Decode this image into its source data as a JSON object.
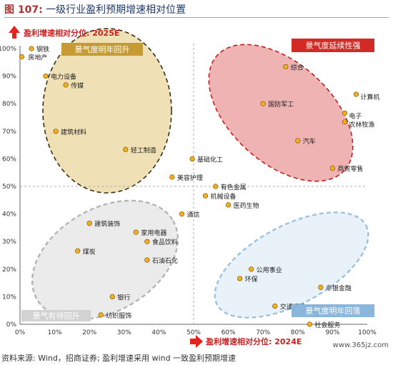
{
  "figure": {
    "title_num": "图 107:",
    "title_text": "一级行业盈利预期增速相对位置",
    "source": "资料来源: Wind，招商证券; 盈利增速采用 wind 一致盈利预期增速",
    "watermark": "www.365jz.com"
  },
  "colors": {
    "axis_arrow": "#e8221c",
    "axis_label": "#cc1f1f",
    "point": "#f3b01c",
    "point_stroke": "#6b4f00",
    "q2": {
      "fill": "#efe1b5",
      "stroke": "#3a2f14",
      "tag_bg": "#c79b33"
    },
    "q1": {
      "fill": "#f0b3b3",
      "stroke": "#c01f1f",
      "tag_bg": "#d42a26"
    },
    "q3": {
      "fill": "#ebebeb",
      "stroke": "#b5b5b5",
      "tag_bg": "#d2d2d2"
    },
    "q4": {
      "fill": "#eaf2f9",
      "stroke": "#9cc2df",
      "tag_bg": "#8ab6db"
    }
  },
  "chart_data": {
    "type": "scatter",
    "xlabel": "盈利增速相对分位: 2024E",
    "ylabel": "盈利增速相对分位: 2025E",
    "xlim": [
      0,
      100
    ],
    "ylim": [
      0,
      100
    ],
    "xticks": [
      "0%",
      "10%",
      "20%",
      "30%",
      "40%",
      "50%",
      "60%",
      "70%",
      "80%",
      "90%",
      "100%"
    ],
    "yticks": [
      "0%",
      "10%",
      "20%",
      "30%",
      "40%",
      "50%",
      "60%",
      "70%",
      "80%",
      "90%",
      "100%"
    ],
    "divider": {
      "x": 50,
      "y": 50
    },
    "regions": [
      {
        "id": "q2",
        "label": "景气度明年回升"
      },
      {
        "id": "q1",
        "label": "景气度延续性强"
      },
      {
        "id": "q3",
        "label": "景气有待回升"
      },
      {
        "id": "q4",
        "label": "景气度明年回落"
      }
    ],
    "points": [
      {
        "name": "钢铁",
        "x": 3.3,
        "y": 100
      },
      {
        "name": "房地产",
        "x": 0.5,
        "y": 97
      },
      {
        "name": "电力设备",
        "x": 7.4,
        "y": 90
      },
      {
        "name": "传媒",
        "x": 13.2,
        "y": 86.8
      },
      {
        "name": "建筑材料",
        "x": 10.3,
        "y": 70
      },
      {
        "name": "轻工制造",
        "x": 30.4,
        "y": 63.4
      },
      {
        "name": "基础化工",
        "x": 49.6,
        "y": 60
      },
      {
        "name": "美容护理",
        "x": 43.8,
        "y": 53.4
      },
      {
        "name": "有色金属",
        "x": 56.3,
        "y": 50
      },
      {
        "name": "机械设备",
        "x": 53.4,
        "y": 46.6
      },
      {
        "name": "医药生物",
        "x": 60,
        "y": 43.3
      },
      {
        "name": "通信",
        "x": 46.6,
        "y": 40
      },
      {
        "name": "综合",
        "x": 76.5,
        "y": 93.4
      },
      {
        "name": "国防军工",
        "x": 70,
        "y": 80
      },
      {
        "name": "计算机",
        "x": 96.8,
        "y": 83.4
      },
      {
        "name": "电子",
        "x": 93.5,
        "y": 76.6
      },
      {
        "name": "农林牧渔",
        "x": 93.5,
        "y": 73.4
      },
      {
        "name": "汽车",
        "x": 80,
        "y": 66.6
      },
      {
        "name": "商贸零售",
        "x": 90,
        "y": 56.6
      },
      {
        "name": "建筑装饰",
        "x": 20,
        "y": 36.6
      },
      {
        "name": "家用电器",
        "x": 33.4,
        "y": 33.4
      },
      {
        "name": "食品饮料",
        "x": 36.6,
        "y": 30
      },
      {
        "name": "煤炭",
        "x": 16.6,
        "y": 26.6
      },
      {
        "name": "石油石化",
        "x": 36.6,
        "y": 23.3
      },
      {
        "name": "银行",
        "x": 26.6,
        "y": 10
      },
      {
        "name": "纺织服饰",
        "x": 23.3,
        "y": 3.4
      },
      {
        "name": "公用事业",
        "x": 66.6,
        "y": 20
      },
      {
        "name": "环保",
        "x": 63.3,
        "y": 16.6
      },
      {
        "name": "非银金融",
        "x": 86.6,
        "y": 13.4
      },
      {
        "name": "交通运输",
        "x": 73.4,
        "y": 6.6
      },
      {
        "name": "社会服务",
        "x": 83.4,
        "y": 0
      }
    ]
  }
}
